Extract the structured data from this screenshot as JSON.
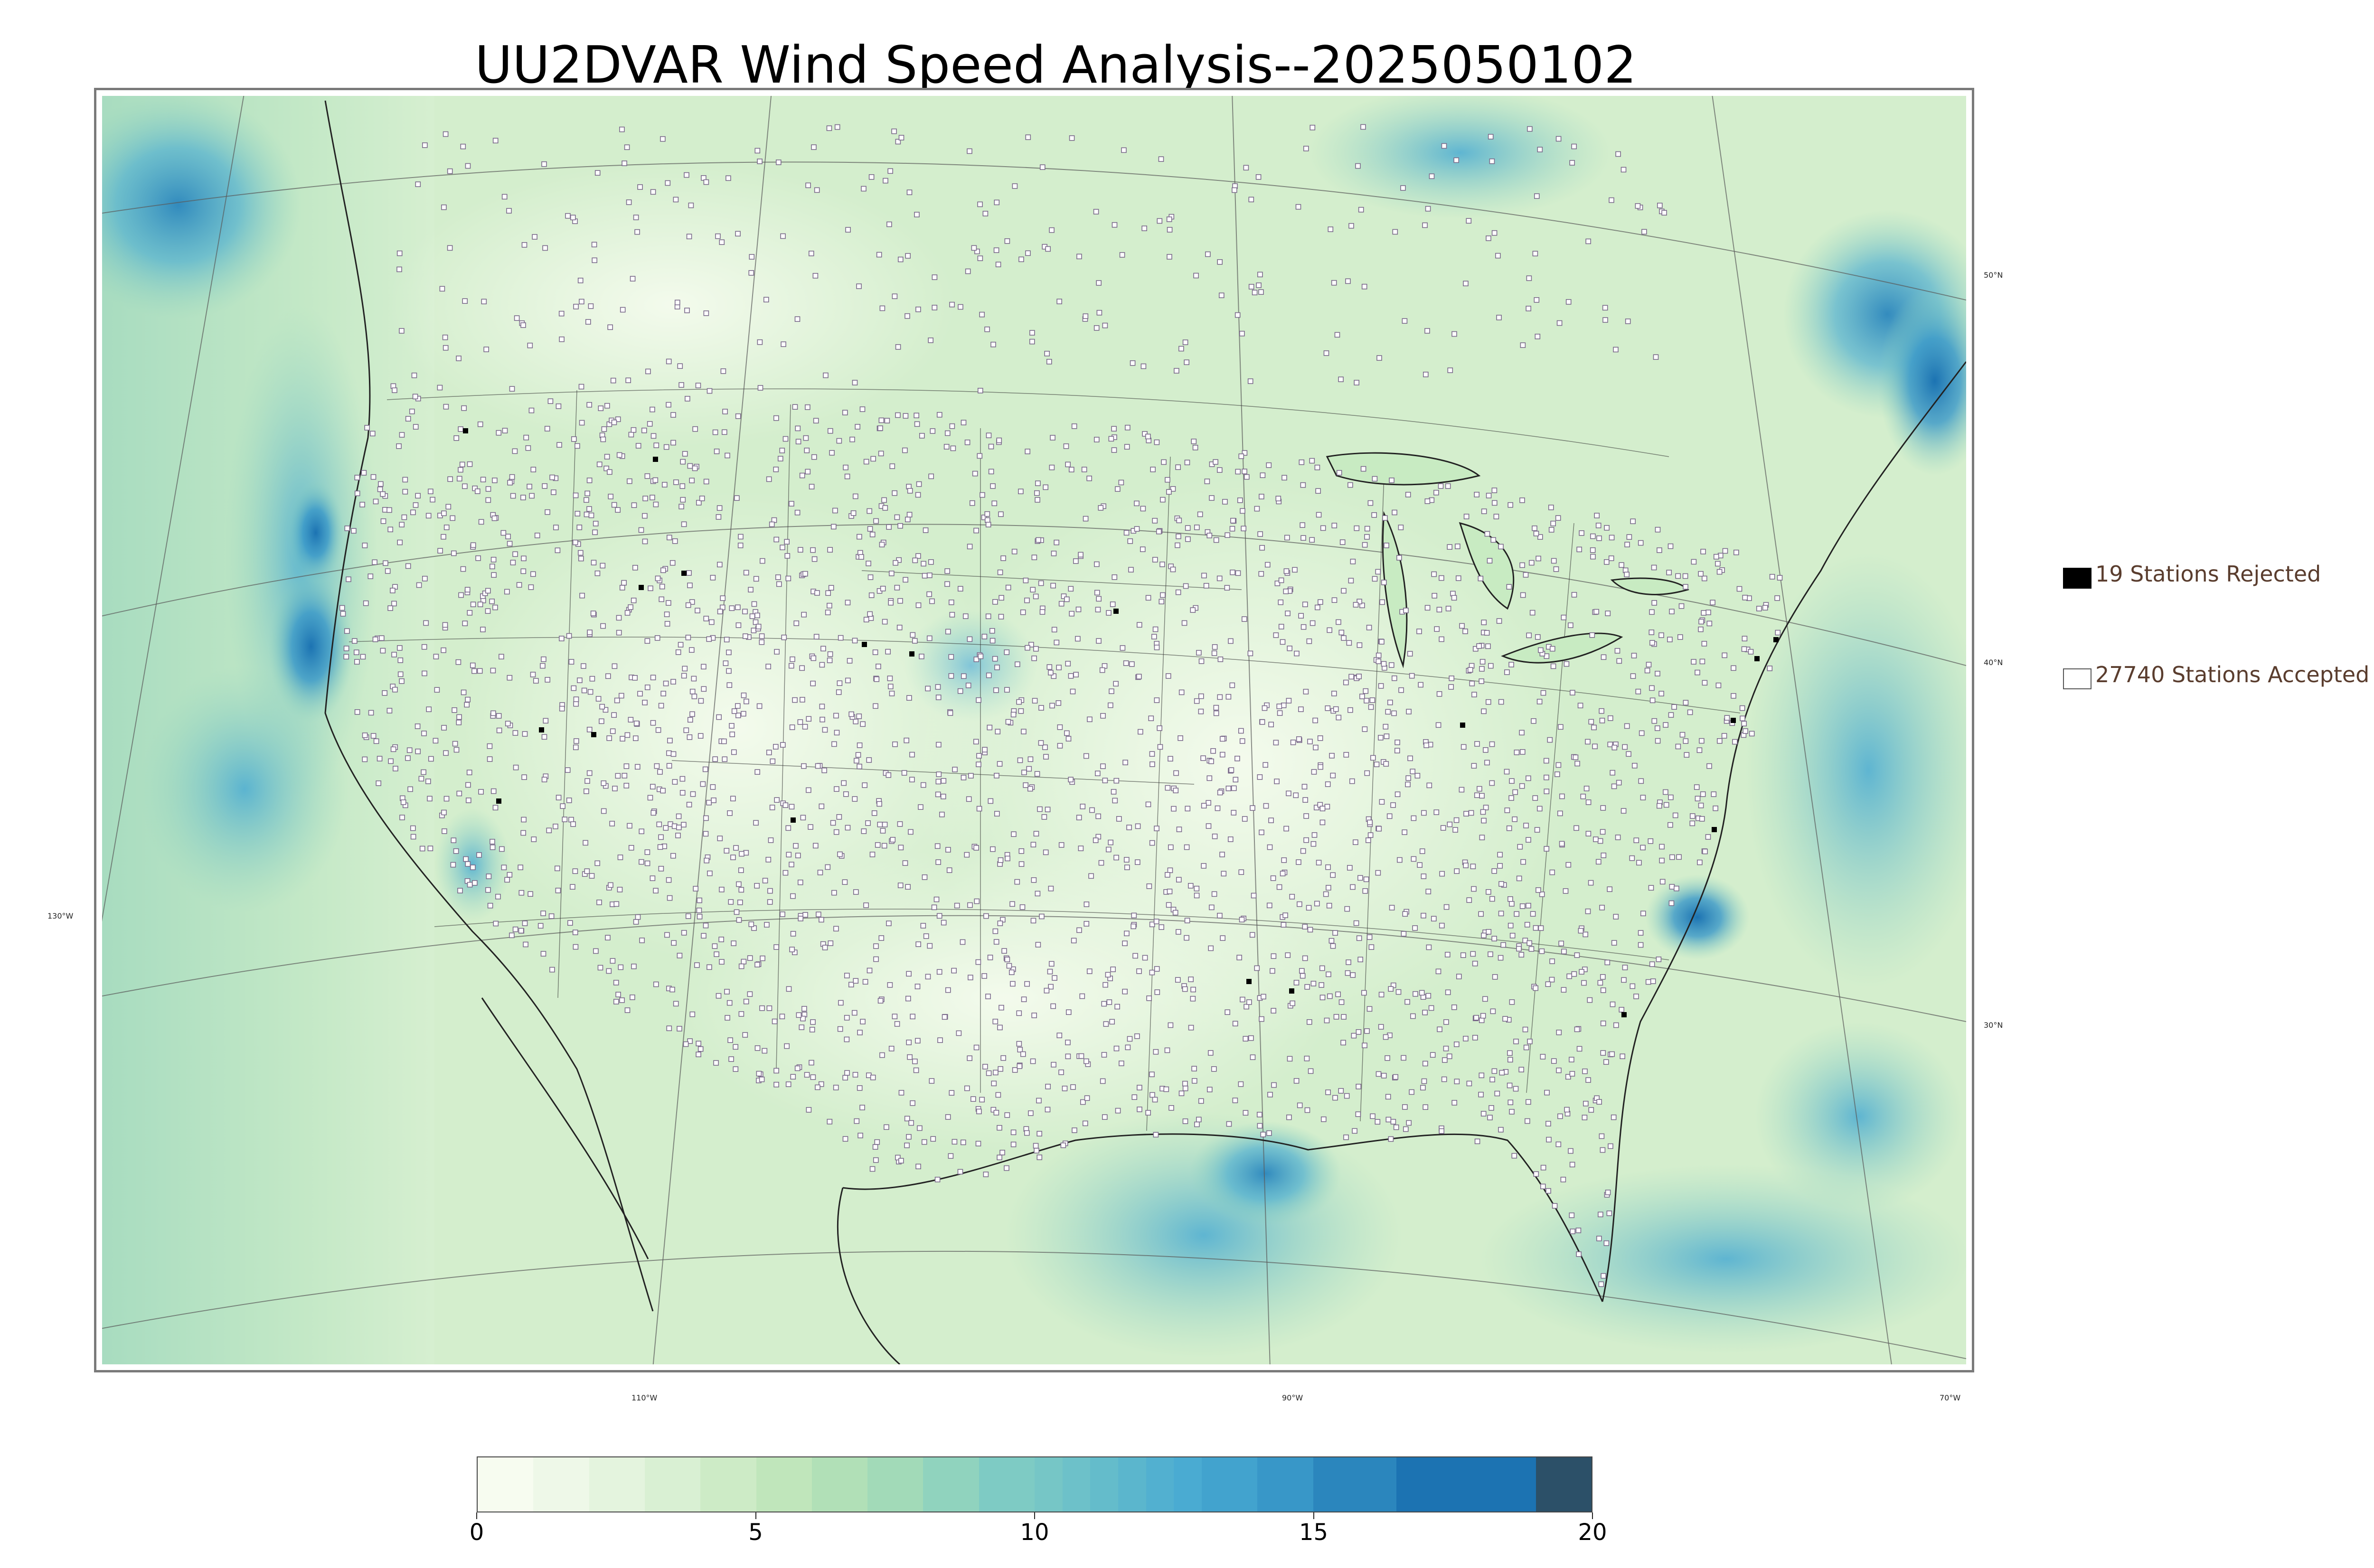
{
  "title": "UU2DVAR Wind Speed Analysis--2025050102",
  "map": {
    "projection": "lambert-conformal",
    "field": "wind-speed",
    "latitude_labels": [
      "50°N",
      "40°N",
      "30°N"
    ],
    "longitude_labels": [
      "130°W",
      "110°W",
      "90°W",
      "70°W"
    ],
    "markers": {
      "rejected_color": "#000000",
      "accepted_color": "#ffffff",
      "marker_edge": "#7a6a8a"
    }
  },
  "legend": {
    "rejected": {
      "label": "19 Stations Rejected",
      "color": "#000000"
    },
    "accepted": {
      "label": "27740 Stations Accepted",
      "color": "#ffffff"
    }
  },
  "colorbar": {
    "min": 0,
    "max": 20,
    "tick_labels": [
      "0",
      "5",
      "10",
      "15",
      "20"
    ],
    "bins": [
      {
        "from": 0,
        "to": 1,
        "color": "#f7fcf0"
      },
      {
        "from": 1,
        "to": 2,
        "color": "#eef8e8"
      },
      {
        "from": 2,
        "to": 3,
        "color": "#e4f4de"
      },
      {
        "from": 3,
        "to": 4,
        "color": "#d9f0d3"
      },
      {
        "from": 4,
        "to": 5,
        "color": "#cdebc6"
      },
      {
        "from": 5,
        "to": 6,
        "color": "#c0e6bb"
      },
      {
        "from": 6,
        "to": 7,
        "color": "#b1e0b7"
      },
      {
        "from": 7,
        "to": 8,
        "color": "#a2dab8"
      },
      {
        "from": 8,
        "to": 9,
        "color": "#90d3be"
      },
      {
        "from": 9,
        "to": 10,
        "color": "#7ecbc4"
      },
      {
        "from": 10,
        "to": 10.5,
        "color": "#76c6c6"
      },
      {
        "from": 10.5,
        "to": 11,
        "color": "#6dc1c9"
      },
      {
        "from": 11,
        "to": 11.5,
        "color": "#64bccb"
      },
      {
        "from": 11.5,
        "to": 12,
        "color": "#5bb6cd"
      },
      {
        "from": 12,
        "to": 12.5,
        "color": "#52b0d0"
      },
      {
        "from": 12.5,
        "to": 13,
        "color": "#4aabd2"
      },
      {
        "from": 13,
        "to": 14,
        "color": "#42a3ce"
      },
      {
        "from": 14,
        "to": 15,
        "color": "#3897c8"
      },
      {
        "from": 15,
        "to": 16.5,
        "color": "#2b86bd"
      },
      {
        "from": 16.5,
        "to": 19,
        "color": "#1c73b2"
      },
      {
        "from": 19,
        "to": 20,
        "color": "#2c5068"
      }
    ]
  }
}
